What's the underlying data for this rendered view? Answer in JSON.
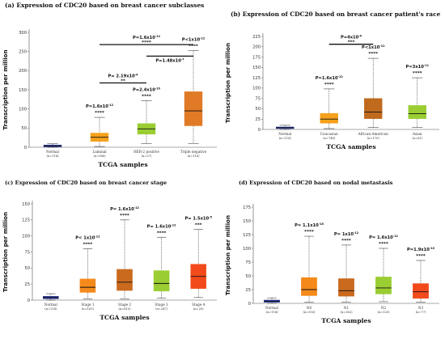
{
  "chart_data": [
    {
      "type": "boxplot",
      "panel": "a",
      "title": "(a) Expression of CDC20  based on  breast cancer subclasses",
      "ylabel": "Transcription per million",
      "xlabel": "TCGA samples",
      "ylim": [
        0,
        300
      ],
      "yticks": [
        0,
        50,
        100,
        150,
        200,
        250,
        300
      ],
      "categories": [
        "Normal",
        "Luminal",
        "HER-2 positive",
        "Triple negative"
      ],
      "counts": [
        "(n=114)",
        "(n=566)",
        "(n=37)",
        "(n=116)"
      ],
      "colors": [
        "#283593",
        "#F5A11B",
        "#9ACD32",
        "#E07A26"
      ],
      "boxes": [
        {
          "min": 0,
          "q1": 1,
          "median": 3,
          "q3": 6,
          "max": 9
        },
        {
          "min": 2,
          "q1": 15,
          "median": 26,
          "q3": 37,
          "max": 78
        },
        {
          "min": 10,
          "q1": 34,
          "median": 48,
          "q3": 62,
          "max": 122
        },
        {
          "min": 10,
          "q1": 56,
          "median": 95,
          "q3": 145,
          "max": 252
        }
      ],
      "annotations": [
        {
          "cat": 1,
          "p": "P=1.6x10",
          "exp": "-12",
          "stars": "****"
        },
        {
          "cat": 2,
          "p": "P=2.4x10",
          "exp": "-10",
          "stars": "****"
        },
        {
          "cat": 3,
          "p": "P<1x10",
          "exp": "-12",
          "stars": "****"
        }
      ],
      "brackets": [
        {
          "from": 1,
          "to": 2,
          "y": 168,
          "p": "P= 2.19x10",
          "exp": "-4",
          "stars": "**"
        },
        {
          "from": 1,
          "to": 3,
          "y": 268,
          "p": "P=1.6x10",
          "exp": "-12",
          "stars": "****"
        },
        {
          "from": 2,
          "to": 3,
          "y": 238,
          "p": "P=1.48x10",
          "exp": "-7",
          "stars": ""
        }
      ]
    },
    {
      "type": "boxplot",
      "panel": "b",
      "title": "(b) Expression of CDC20  based on breast cancer patient's race",
      "ylabel": "Transcription per million",
      "xlabel": "TCGA samples",
      "ylim": [
        0,
        225
      ],
      "yticks": [
        0,
        25,
        50,
        75,
        100,
        125,
        150,
        175,
        200,
        225
      ],
      "categories": [
        "Normal",
        "Caucasian",
        "African-American",
        "Asian"
      ],
      "counts": [
        "(n=114)",
        "(n=748)",
        "(n=179)",
        "(n=61)"
      ],
      "colors": [
        "#283593",
        "#F5A11B",
        "#C06A1E",
        "#9ACD32"
      ],
      "boxes": [
        {
          "min": 0,
          "q1": 2,
          "median": 4,
          "q3": 6,
          "max": 10
        },
        {
          "min": 2,
          "q1": 15,
          "median": 25,
          "q3": 39,
          "max": 98
        },
        {
          "min": 5,
          "q1": 26,
          "median": 42,
          "q3": 75,
          "max": 172
        },
        {
          "min": 5,
          "q1": 26,
          "median": 38,
          "q3": 58,
          "max": 125
        }
      ],
      "annotations": [
        {
          "cat": 1,
          "p": "P=1.6x10",
          "exp": "-12",
          "stars": "****"
        },
        {
          "cat": 2,
          "p": "P<1x10",
          "exp": "-12",
          "stars": "****"
        },
        {
          "cat": 3,
          "p": "P=3x10",
          "exp": "-11",
          "stars": "****"
        }
      ],
      "brackets": [
        {
          "from": 1,
          "to": 2,
          "y": 206,
          "p": "P=4x10",
          "exp": "-4",
          "stars": "***"
        }
      ]
    },
    {
      "type": "boxplot",
      "panel": "c",
      "title": "(c) Expression of CDC20  based on breast cancer stage",
      "ylabel": "Transcription per million",
      "xlabel": "TCGA samples",
      "ylim": [
        0,
        150
      ],
      "yticks": [
        0,
        25,
        50,
        75,
        100,
        125,
        150
      ],
      "categories": [
        "Normal",
        "Stage 1",
        "Stage 2",
        "Stage 3",
        "Stage 4"
      ],
      "counts": [
        "(n=114)",
        "(n=183)",
        "(n=615)",
        "(n=247)",
        "(n=20)"
      ],
      "colors": [
        "#283593",
        "#F58A1B",
        "#C96A1E",
        "#9ACD32",
        "#F24A1A"
      ],
      "boxes": [
        {
          "min": 0,
          "q1": 2,
          "median": 4,
          "q3": 6,
          "max": 10
        },
        {
          "min": 2,
          "q1": 12,
          "median": 20,
          "q3": 33,
          "max": 80
        },
        {
          "min": 2,
          "q1": 15,
          "median": 28,
          "q3": 48,
          "max": 125
        },
        {
          "min": 3,
          "q1": 14,
          "median": 26,
          "q3": 46,
          "max": 98
        },
        {
          "min": 4,
          "q1": 18,
          "median": 37,
          "q3": 56,
          "max": 110
        }
      ],
      "annotations": [
        {
          "cat": 1,
          "p": "P< 1x10",
          "exp": "-12",
          "stars": "****"
        },
        {
          "cat": 2,
          "p": "P= 1.6x10",
          "exp": "-12",
          "stars": "****"
        },
        {
          "cat": 3,
          "p": "P= 1.6x10",
          "exp": "-12",
          "stars": "****"
        },
        {
          "cat": 4,
          "p": "P= 1.5x10",
          "exp": "-5",
          "stars": "***"
        }
      ],
      "brackets": []
    },
    {
      "type": "boxplot",
      "panel": "d",
      "title": "(d) Expression of CDC20 based on nodal metastasis",
      "ylabel": "Transcription per million",
      "xlabel": "TCGA samples",
      "ylim": [
        0,
        175
      ],
      "yticks": [
        0,
        25,
        50,
        75,
        100,
        125,
        150,
        175
      ],
      "categories": [
        "Normal",
        "N0",
        "N1",
        "N2",
        "N3"
      ],
      "counts": [
        "(n=114)",
        "(n=516)",
        "(n=362)",
        "(n=120)",
        "(n=77)"
      ],
      "colors": [
        "#283593",
        "#F58A1B",
        "#C96A1E",
        "#9ACD32",
        "#F24A1A"
      ],
      "boxes": [
        {
          "min": 0,
          "q1": 2,
          "median": 4,
          "q3": 6,
          "max": 10
        },
        {
          "min": 2,
          "q1": 14,
          "median": 25,
          "q3": 47,
          "max": 122
        },
        {
          "min": 2,
          "q1": 13,
          "median": 23,
          "q3": 45,
          "max": 106
        },
        {
          "min": 3,
          "q1": 17,
          "median": 28,
          "q3": 48,
          "max": 100
        },
        {
          "min": 2,
          "q1": 9,
          "median": 21,
          "q3": 36,
          "max": 78
        }
      ],
      "annotations": [
        {
          "cat": 1,
          "p": "P= 1.1x10",
          "exp": "-16",
          "stars": "****"
        },
        {
          "cat": 2,
          "p": "P= 1x10",
          "exp": "-12",
          "stars": "****"
        },
        {
          "cat": 3,
          "p": "P= 1.6x10",
          "exp": "-12",
          "stars": "****"
        },
        {
          "cat": 4,
          "p": "P=1.9x10",
          "exp": "-10",
          "stars": "****"
        }
      ],
      "brackets": []
    }
  ]
}
